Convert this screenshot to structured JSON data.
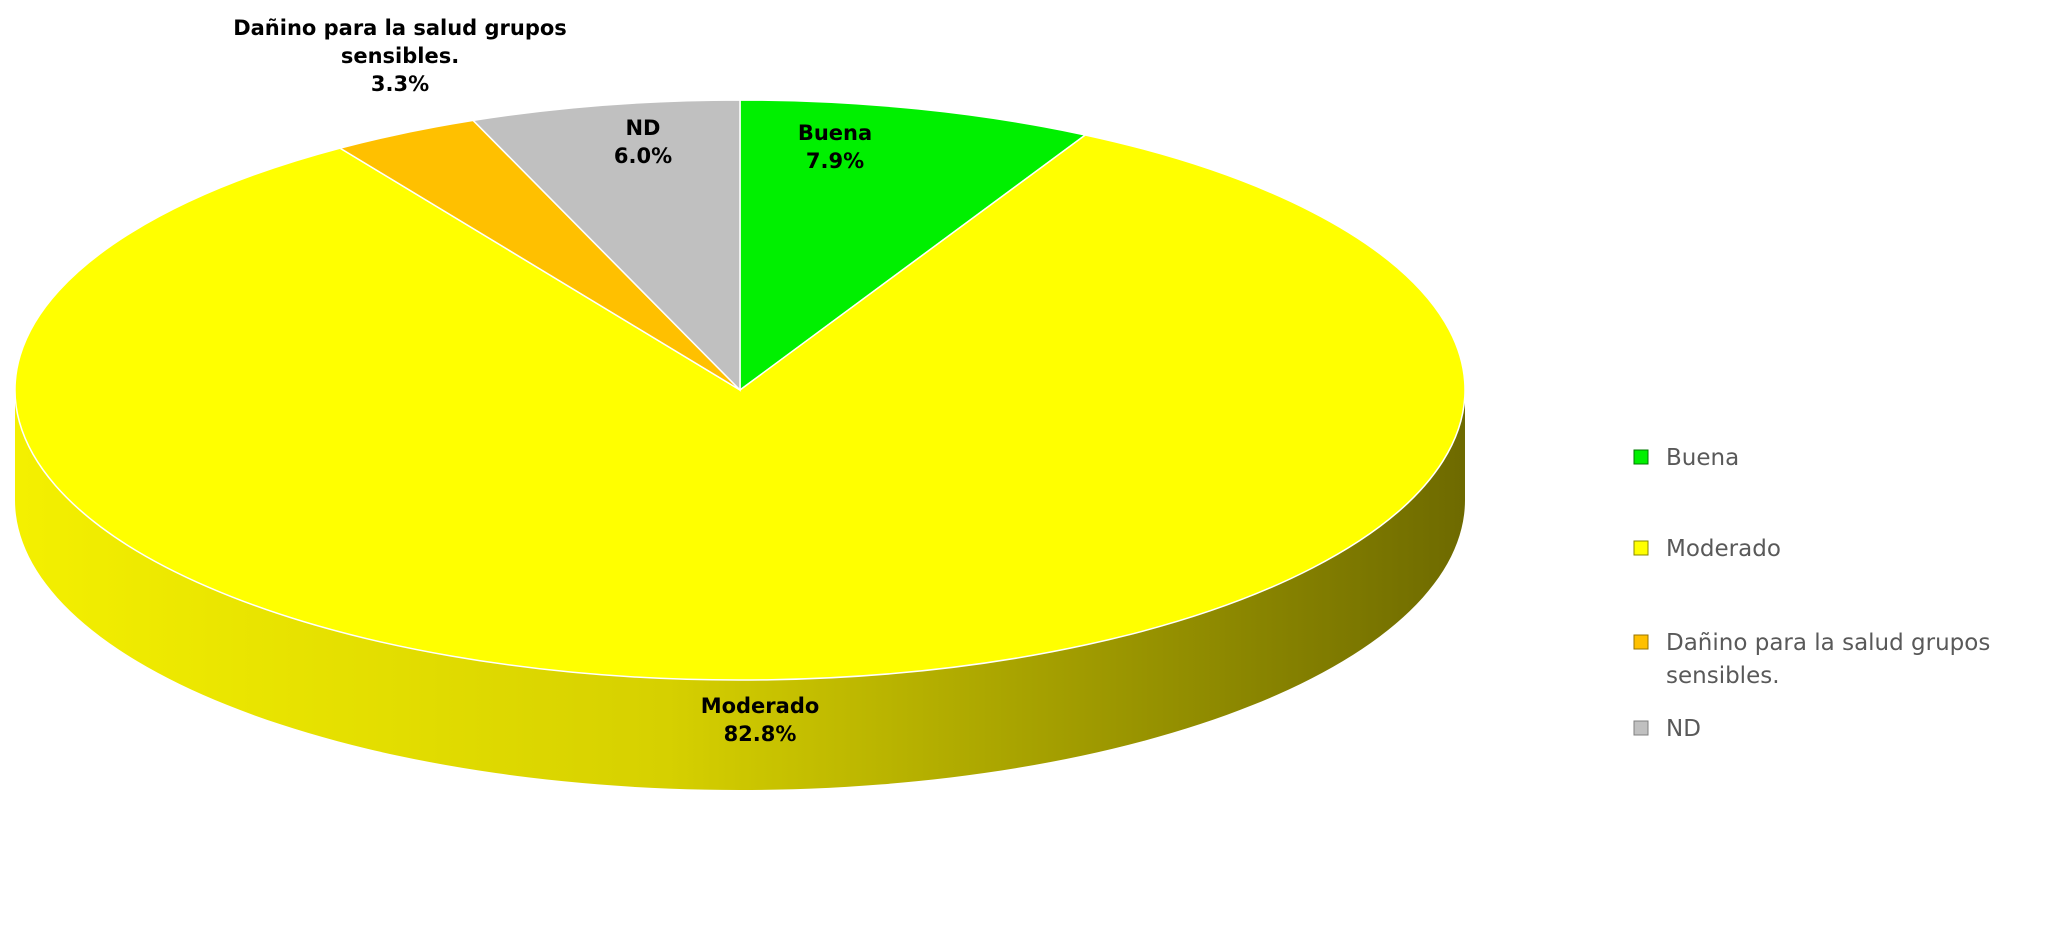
{
  "chart_data": {
    "type": "pie",
    "title": "",
    "categories": [
      "Buena",
      "Moderado",
      "Dañino para la salud grupos sensibles.",
      "ND"
    ],
    "values": [
      7.9,
      82.8,
      3.3,
      6.0
    ],
    "data_labels": [
      {
        "name_lines": [
          "Buena"
        ],
        "value": "7.9%"
      },
      {
        "name_lines": [
          "Moderado"
        ],
        "value": "82.8%"
      },
      {
        "name_lines": [
          "Dañino para la salud grupos",
          "sensibles."
        ],
        "value": "3.3%"
      },
      {
        "name_lines": [
          "ND"
        ],
        "value": "6.0%"
      }
    ],
    "legend": {
      "position": "right",
      "entries": [
        {
          "lines": [
            "Buena"
          ]
        },
        {
          "lines": [
            "Moderado"
          ]
        },
        {
          "lines": [
            "Dañino para la salud grupos",
            "sensibles."
          ]
        },
        {
          "lines": [
            "ND"
          ]
        }
      ]
    },
    "colors": [
      "#00f000",
      "#ffff00",
      "#ffc000",
      "#c0c0c0"
    ],
    "side_colors": [
      "#007a00",
      "#8a8a00",
      "#9a7400",
      "#808080"
    ],
    "style": "3d-pie"
  }
}
